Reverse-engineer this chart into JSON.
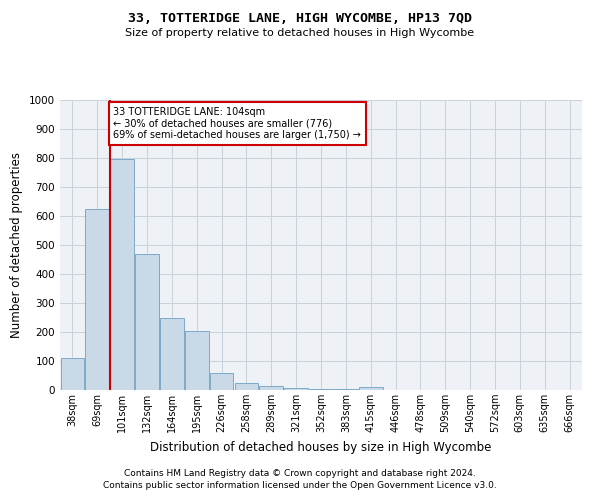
{
  "title": "33, TOTTERIDGE LANE, HIGH WYCOMBE, HP13 7QD",
  "subtitle": "Size of property relative to detached houses in High Wycombe",
  "xlabel": "Distribution of detached houses by size in High Wycombe",
  "ylabel": "Number of detached properties",
  "footer_line1": "Contains HM Land Registry data © Crown copyright and database right 2024.",
  "footer_line2": "Contains public sector information licensed under the Open Government Licence v3.0.",
  "bar_labels": [
    "38sqm",
    "69sqm",
    "101sqm",
    "132sqm",
    "164sqm",
    "195sqm",
    "226sqm",
    "258sqm",
    "289sqm",
    "321sqm",
    "352sqm",
    "383sqm",
    "415sqm",
    "446sqm",
    "478sqm",
    "509sqm",
    "540sqm",
    "572sqm",
    "603sqm",
    "635sqm",
    "666sqm"
  ],
  "bar_values": [
    110,
    625,
    795,
    470,
    250,
    205,
    60,
    25,
    15,
    8,
    2,
    2,
    10,
    0,
    0,
    0,
    0,
    0,
    0,
    0,
    0
  ],
  "bar_color": "#c9d9e8",
  "bar_edge_color": "#7aaac8",
  "ylim": [
    0,
    1000
  ],
  "yticks": [
    0,
    100,
    200,
    300,
    400,
    500,
    600,
    700,
    800,
    900,
    1000
  ],
  "annotation_line1": "33 TOTTERIDGE LANE: 104sqm",
  "annotation_line2": "← 30% of detached houses are smaller (776)",
  "annotation_line3": "69% of semi-detached houses are larger (1,750) →",
  "vline_bar_index": 2,
  "annotation_box_color": "#ffffff",
  "annotation_box_edge": "#cc0000",
  "vline_color": "#cc0000",
  "grid_color": "#c8d0da",
  "bg_color": "#eef2f7"
}
